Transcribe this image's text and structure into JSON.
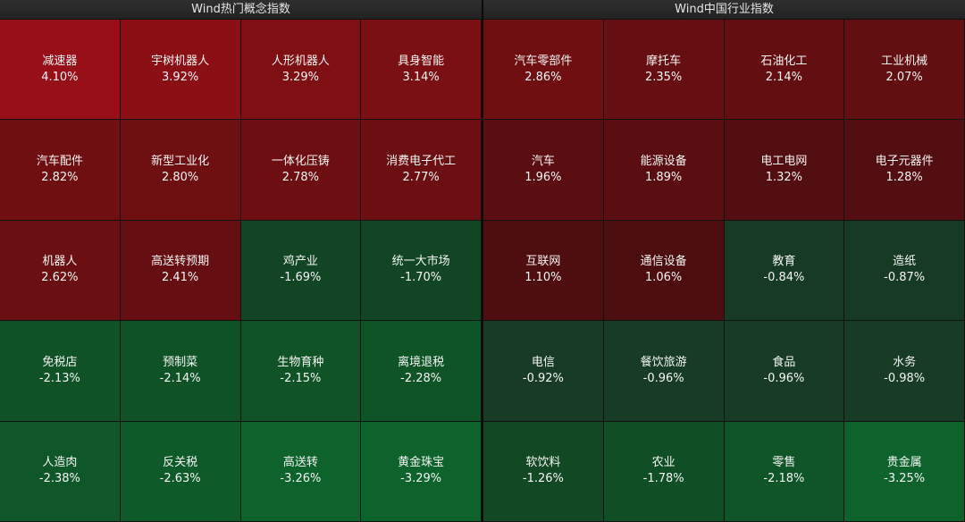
{
  "left": {
    "title": "Wind热门概念指数",
    "cells": [
      {
        "name": "减速器",
        "pct": "4.10%",
        "color": "#970f18"
      },
      {
        "name": "宇树机器人",
        "pct": "3.92%",
        "color": "#8a1016"
      },
      {
        "name": "人形机器人",
        "pct": "3.29%",
        "color": "#7e1014"
      },
      {
        "name": "具身智能",
        "pct": "3.14%",
        "color": "#7a1013"
      },
      {
        "name": "汽车配件",
        "pct": "2.82%",
        "color": "#6f0f12"
      },
      {
        "name": "新型工业化",
        "pct": "2.80%",
        "color": "#6e0f12"
      },
      {
        "name": "一体化压铸",
        "pct": "2.78%",
        "color": "#6d0f12"
      },
      {
        "name": "消费电子代工",
        "pct": "2.77%",
        "color": "#6c0f12"
      },
      {
        "name": "机器人",
        "pct": "2.62%",
        "color": "#6a0f12"
      },
      {
        "name": "高送转预期",
        "pct": "2.41%",
        "color": "#650f12"
      },
      {
        "name": "鸡产业",
        "pct": "-1.69%",
        "color": "#114524"
      },
      {
        "name": "统一大市场",
        "pct": "-1.70%",
        "color": "#114524"
      },
      {
        "name": "免税店",
        "pct": "-2.13%",
        "color": "#0f5226"
      },
      {
        "name": "预制菜",
        "pct": "-2.14%",
        "color": "#0f5226"
      },
      {
        "name": "生物育种",
        "pct": "-2.15%",
        "color": "#0f5326"
      },
      {
        "name": "离境退税",
        "pct": "-2.28%",
        "color": "#0f5427"
      },
      {
        "name": "人造肉",
        "pct": "-2.38%",
        "color": "#0f5728"
      },
      {
        "name": "反关税",
        "pct": "-2.63%",
        "color": "#0f5a29"
      },
      {
        "name": "高送转",
        "pct": "-3.26%",
        "color": "#0e622c"
      },
      {
        "name": "黄金珠宝",
        "pct": "-3.29%",
        "color": "#0e632c"
      }
    ]
  },
  "right": {
    "title": "Wind中国行业指数",
    "cells": [
      {
        "name": "汽车零部件",
        "pct": "2.86%",
        "color": "#6f0f12"
      },
      {
        "name": "摩托车",
        "pct": "2.35%",
        "color": "#660f12"
      },
      {
        "name": "石油化工",
        "pct": "2.14%",
        "color": "#630f12"
      },
      {
        "name": "工业机械",
        "pct": "2.07%",
        "color": "#620f12"
      },
      {
        "name": "汽车",
        "pct": "1.96%",
        "color": "#5b0e11"
      },
      {
        "name": "能源设备",
        "pct": "1.89%",
        "color": "#5a0e11"
      },
      {
        "name": "电工电网",
        "pct": "1.32%",
        "color": "#530e11"
      },
      {
        "name": "电子元器件",
        "pct": "1.28%",
        "color": "#520e11"
      },
      {
        "name": "互联网",
        "pct": "1.10%",
        "color": "#4e0e10"
      },
      {
        "name": "通信设备",
        "pct": "1.06%",
        "color": "#4d0e10"
      },
      {
        "name": "教育",
        "pct": "-0.84%",
        "color": "#173a24"
      },
      {
        "name": "造纸",
        "pct": "-0.87%",
        "color": "#173a24"
      },
      {
        "name": "电信",
        "pct": "-0.92%",
        "color": "#173b25"
      },
      {
        "name": "餐饮旅游",
        "pct": "-0.96%",
        "color": "#173b25"
      },
      {
        "name": "食品",
        "pct": "-0.96%",
        "color": "#173b25"
      },
      {
        "name": "水务",
        "pct": "-0.98%",
        "color": "#173b25"
      },
      {
        "name": "软饮料",
        "pct": "-1.26%",
        "color": "#124824"
      },
      {
        "name": "农业",
        "pct": "-1.78%",
        "color": "#104f25"
      },
      {
        "name": "零售",
        "pct": "-2.18%",
        "color": "#0f5527"
      },
      {
        "name": "贵金属",
        "pct": "-3.25%",
        "color": "#0e632d"
      }
    ]
  }
}
